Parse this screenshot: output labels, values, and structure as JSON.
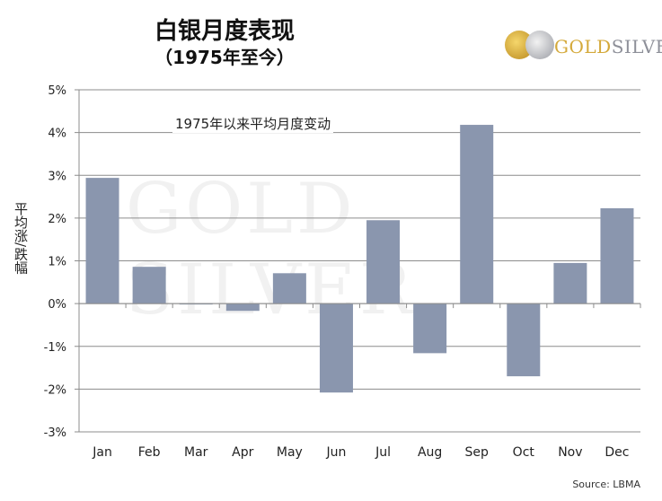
{
  "title": "白银月度表现",
  "subtitle": "（1975年至今）",
  "logo": {
    "gold": "GOLD",
    "silver": "SILVER"
  },
  "watermark": "GOLD SILVER",
  "source": "Source: LBMA",
  "chart_data": {
    "type": "bar",
    "title": "白银月度表现（1975年至今）",
    "annotation": "1975年以来平均月度变动",
    "ylabel": "平均涨/跌幅",
    "xlabel": "",
    "categories": [
      "Jan",
      "Feb",
      "Mar",
      "Apr",
      "May",
      "Jun",
      "Jul",
      "Aug",
      "Sep",
      "Oct",
      "Nov",
      "Dec"
    ],
    "values": [
      2.94,
      0.86,
      -0.02,
      -0.17,
      0.71,
      -2.08,
      1.95,
      -1.16,
      4.18,
      -1.7,
      0.95,
      2.23
    ],
    "unit": "%",
    "ylim": [
      -3,
      5
    ],
    "yticks": [
      "5%",
      "4%",
      "3%",
      "2%",
      "1%",
      "0%",
      "-1%",
      "-2%",
      "-3%"
    ],
    "grid": true,
    "bar_color": "#8a96ae"
  }
}
